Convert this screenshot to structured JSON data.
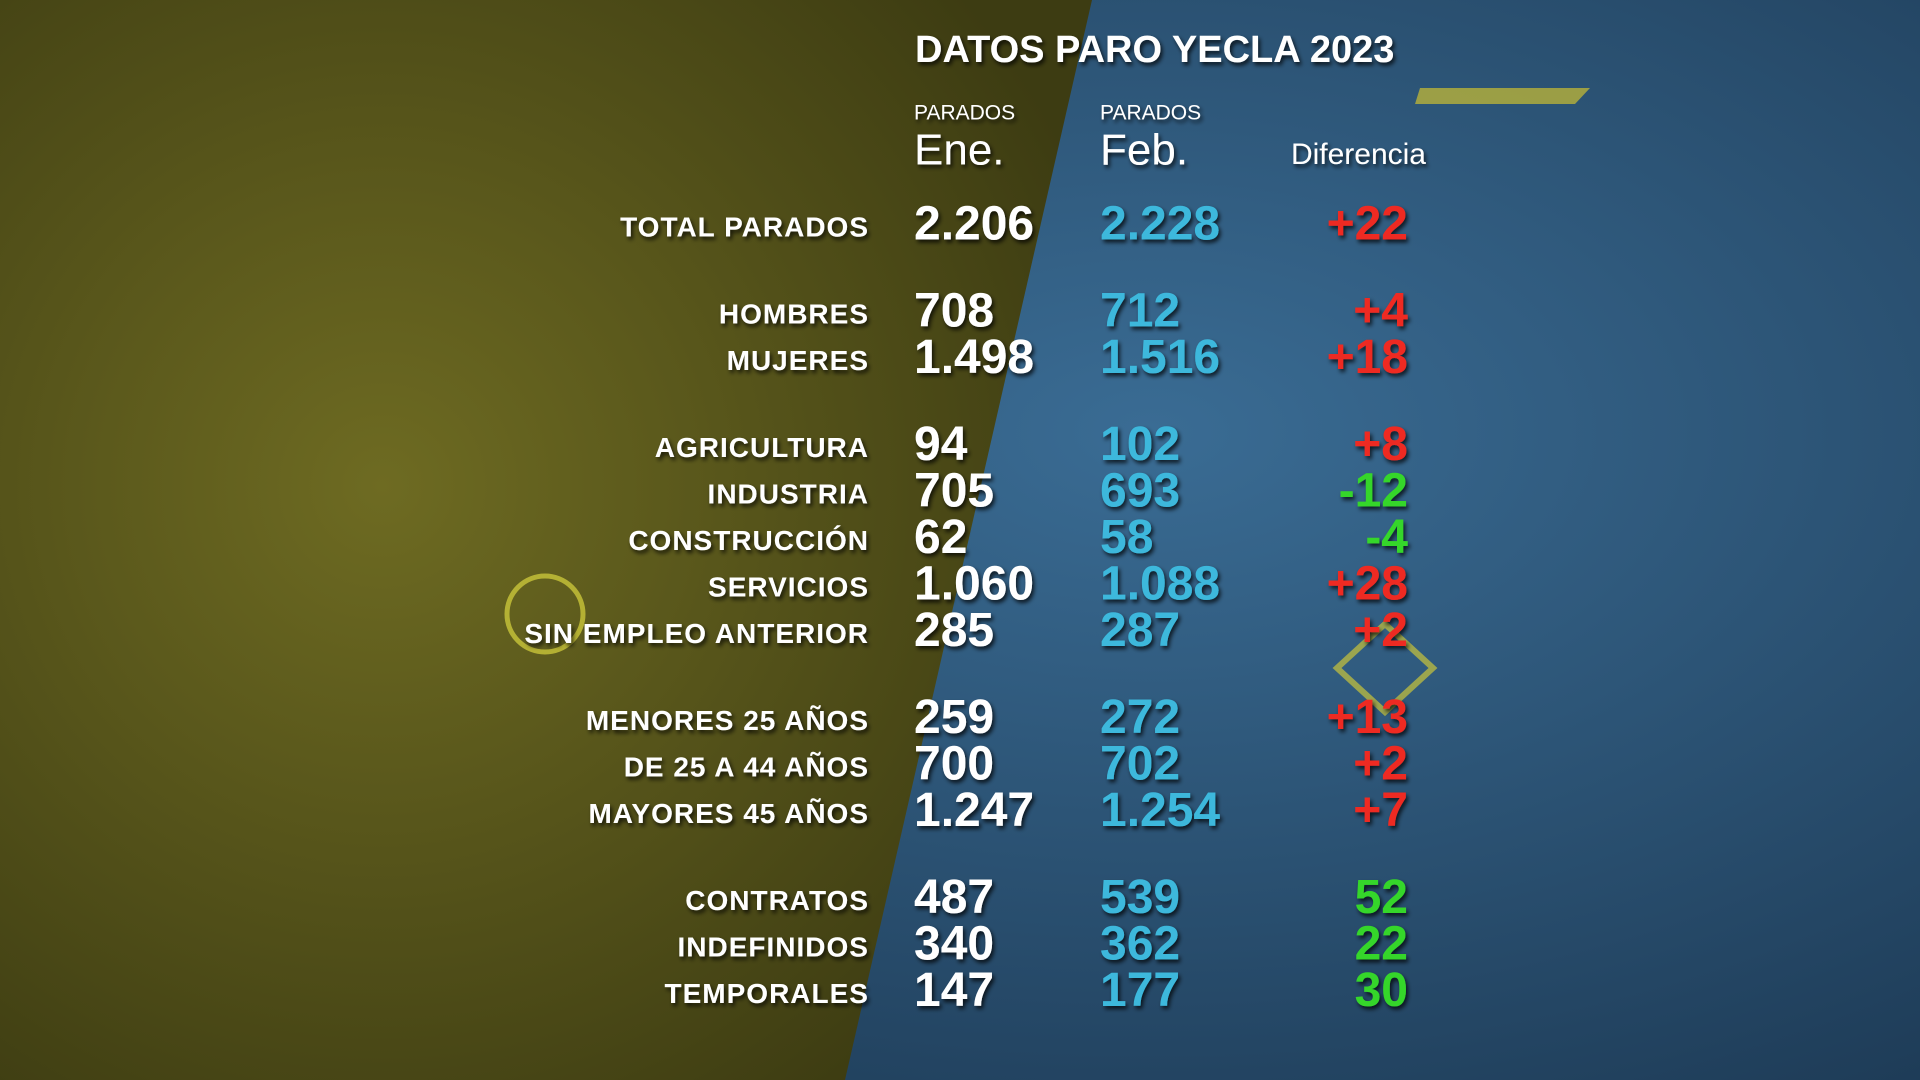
{
  "header": {
    "title": "DATOS PARO YECLA 2023"
  },
  "columns": {
    "ene": {
      "caption": "PARADOS",
      "label": "Ene."
    },
    "feb": {
      "caption": "PARADOS",
      "label": "Feb."
    },
    "diff": {
      "label": "Diferencia"
    }
  },
  "colors": {
    "ene": "#ffffff",
    "feb": "#3cb8dc",
    "increase": "#ee2a22",
    "decrease": "#34d62c"
  },
  "table": {
    "groups": [
      {
        "rows": [
          {
            "label": "TOTAL PARADOS",
            "ene": "2.206",
            "feb": "2.228",
            "diff": "+22",
            "diff_color": "increase"
          }
        ]
      },
      {
        "rows": [
          {
            "label": "HOMBRES",
            "ene": "708",
            "feb": "712",
            "diff": "+4",
            "diff_color": "increase"
          },
          {
            "label": "MUJERES",
            "ene": "1.498",
            "feb": "1.516",
            "diff": "+18",
            "diff_color": "increase"
          }
        ]
      },
      {
        "rows": [
          {
            "label": "AGRICULTURA",
            "ene": "94",
            "feb": "102",
            "diff": "+8",
            "diff_color": "increase"
          },
          {
            "label": "INDUSTRIA",
            "ene": "705",
            "feb": "693",
            "diff": "-12",
            "diff_color": "decrease"
          },
          {
            "label": "CONSTRUCCIÓN",
            "ene": "62",
            "feb": "58",
            "diff": "-4",
            "diff_color": "decrease"
          },
          {
            "label": "SERVICIOS",
            "ene": "1.060",
            "feb": "1.088",
            "diff": "+28",
            "diff_color": "increase"
          },
          {
            "label": "SIN EMPLEO ANTERIOR",
            "ene": "285",
            "feb": "287",
            "diff": "+2",
            "diff_color": "increase"
          }
        ]
      },
      {
        "rows": [
          {
            "label": "MENORES  25 AÑOS",
            "ene": "259",
            "feb": "272",
            "diff": "+13",
            "diff_color": "increase"
          },
          {
            "label": "DE 25 A 44 AÑOS",
            "ene": "700",
            "feb": "702",
            "diff": "+2",
            "diff_color": "increase"
          },
          {
            "label": "MAYORES  45 AÑOS",
            "ene": "1.247",
            "feb": "1.254",
            "diff": "+7",
            "diff_color": "increase"
          }
        ]
      },
      {
        "rows": [
          {
            "label": "CONTRATOS",
            "ene": "487",
            "feb": "539",
            "diff": "52",
            "diff_color": "decrease"
          },
          {
            "label": "INDEFINIDOS",
            "ene": "340",
            "feb": "362",
            "diff": "22",
            "diff_color": "decrease"
          },
          {
            "label": "TEMPORALES",
            "ene": "147",
            "feb": "177",
            "diff": "30",
            "diff_color": "decrease"
          }
        ]
      }
    ]
  }
}
